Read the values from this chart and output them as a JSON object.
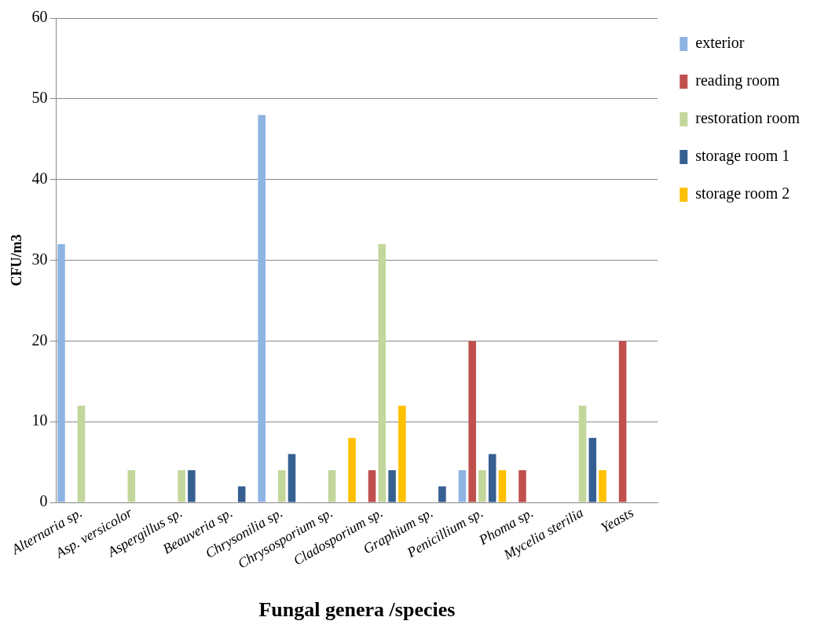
{
  "chart_data": {
    "type": "bar",
    "xlabel": "Fungal genera /species",
    "ylabel": "CFU/m3",
    "categories": [
      "Alternaria sp.",
      "Asp. versicolor",
      "Aspergillus sp.",
      "Beauveria sp.",
      "Chrysonilia sp.",
      "Chrysosporium sp.",
      "Cladosporium sp.",
      "Graphium sp.",
      "Penicillium sp.",
      "Phoma sp.",
      "Mycelia sterilia",
      "Yeasts"
    ],
    "series": [
      {
        "name": "exterior",
        "color": "#8eb4e3",
        "values": [
          32,
          0,
          0,
          0,
          48,
          0,
          0,
          0,
          4,
          0,
          0,
          0
        ]
      },
      {
        "name": "reading room",
        "color": "#c0504d",
        "values": [
          0,
          0,
          0,
          0,
          0,
          0,
          4,
          0,
          20,
          4,
          0,
          20
        ]
      },
      {
        "name": "restoration room",
        "color": "#c3d69b",
        "values": [
          12,
          4,
          4,
          0,
          4,
          4,
          32,
          0,
          4,
          0,
          12,
          0
        ]
      },
      {
        "name": "storage room 1",
        "color": "#376092",
        "values": [
          0,
          0,
          4,
          2,
          6,
          0,
          4,
          2,
          6,
          0,
          8,
          0
        ]
      },
      {
        "name": "storage room 2",
        "color": "#ffc000",
        "values": [
          0,
          0,
          0,
          0,
          0,
          8,
          12,
          0,
          4,
          0,
          4,
          0
        ]
      }
    ],
    "ylim": [
      0,
      60
    ],
    "yticks": [
      0,
      10,
      20,
      30,
      40,
      50,
      60
    ],
    "grid": "y",
    "legend": "right"
  }
}
